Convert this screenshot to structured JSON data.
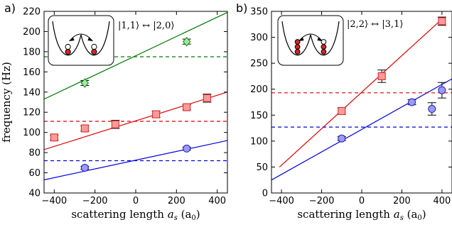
{
  "chart_data": [
    {
      "type": "scatter",
      "panel_label": "a)",
      "ylabel": "frequency (Hz)",
      "xlabel": "scattering length a_s (a_0)",
      "xlabel_main": "scattering length ",
      "xlabel_sym": "a",
      "xlabel_sub": "s",
      "xlabel_unit": "(a",
      "xlabel_unit_sub": "0",
      "xlabel_close": ")",
      "xlim": [
        -450,
        450
      ],
      "ylim": [
        40,
        220
      ],
      "xticks": [
        "−400",
        "−200",
        "0",
        "200",
        "400"
      ],
      "xtick_values": [
        -400,
        -200,
        0,
        200,
        400
      ],
      "yticks": [
        "40",
        "60",
        "80",
        "100",
        "120",
        "140",
        "160",
        "180",
        "200",
        "220"
      ],
      "ytick_values": [
        40,
        60,
        80,
        100,
        120,
        140,
        160,
        180,
        200,
        220
      ],
      "inset_label": "|1,1⟩ ↔ |2,0⟩",
      "series": [
        {
          "color": "#ff9a9a",
          "edge": "#cc2222",
          "marker": "square",
          "x": [
            -400,
            -250,
            -100,
            100,
            250,
            350
          ],
          "y": [
            95,
            104,
            108,
            118,
            125,
            134
          ],
          "err": [
            2.5,
            2.5,
            4,
            3,
            2.5,
            4
          ]
        },
        {
          "color": "#9a9aff",
          "edge": "#2222aa",
          "marker": "circle",
          "x": [
            -250,
            250
          ],
          "y": [
            65,
            84
          ],
          "err": [
            1.5,
            1.5
          ]
        },
        {
          "color": "#99ee99",
          "edge": "#227722",
          "marker": "diamond",
          "x": [
            -250,
            250
          ],
          "y": [
            149,
            190
          ],
          "err": [
            2.5,
            2.5
          ]
        }
      ],
      "lines": [
        {
          "color": "#dd0000",
          "x": [
            -450,
            450
          ],
          "y": [
            83,
            140
          ],
          "style": "solid"
        },
        {
          "color": "#0000dd",
          "x": [
            -450,
            450
          ],
          "y": [
            53,
            92
          ],
          "style": "solid"
        },
        {
          "color": "#007700",
          "x": [
            -450,
            450
          ],
          "y": [
            133,
            219
          ],
          "style": "solid"
        },
        {
          "color": "#dd0000",
          "x": [
            -450,
            450
          ],
          "y": [
            111,
            111
          ],
          "style": "dashed"
        },
        {
          "color": "#0000dd",
          "x": [
            -450,
            450
          ],
          "y": [
            72,
            72
          ],
          "style": "dashed"
        },
        {
          "color": "#007700",
          "x": [
            -450,
            450
          ],
          "y": [
            175,
            175
          ],
          "style": "dashed"
        }
      ]
    },
    {
      "type": "scatter",
      "panel_label": "b)",
      "xlabel": "scattering length a_s (a_0)",
      "xlabel_main": "scattering length ",
      "xlabel_sym": "a",
      "xlabel_sub": "s",
      "xlabel_unit": "(a",
      "xlabel_unit_sub": "0",
      "xlabel_close": ")",
      "xlim": [
        -450,
        450
      ],
      "ylim": [
        0,
        350
      ],
      "xticks": [
        "−400",
        "−200",
        "0",
        "200",
        "400"
      ],
      "xtick_values": [
        -400,
        -200,
        0,
        200,
        400
      ],
      "yticks": [
        "0",
        "50",
        "100",
        "150",
        "200",
        "250",
        "300",
        "350"
      ],
      "ytick_values": [
        0,
        50,
        100,
        150,
        200,
        250,
        300,
        350
      ],
      "inset_label": "|2,2⟩ ↔ |3,1⟩",
      "series": [
        {
          "color": "#ff9a9a",
          "edge": "#cc2222",
          "marker": "square",
          "x": [
            -100,
            100,
            400
          ],
          "y": [
            158,
            225,
            331
          ],
          "err": [
            6,
            12,
            8
          ]
        },
        {
          "color": "#9a9aff",
          "edge": "#2222aa",
          "marker": "circle",
          "x": [
            -100,
            250,
            350,
            400
          ],
          "y": [
            105,
            175,
            162,
            198
          ],
          "err": [
            4,
            5,
            12,
            15
          ]
        }
      ],
      "lines": [
        {
          "color": "#dd0000",
          "x": [
            -410,
            400
          ],
          "y": [
            50,
            335
          ],
          "style": "solid"
        },
        {
          "color": "#0000dd",
          "x": [
            -450,
            450
          ],
          "y": [
            25,
            220
          ],
          "style": "solid"
        },
        {
          "color": "#dd0000",
          "x": [
            -450,
            450
          ],
          "y": [
            193,
            193
          ],
          "style": "dashed"
        },
        {
          "color": "#0000dd",
          "x": [
            -450,
            450
          ],
          "y": [
            127,
            127
          ],
          "style": "dashed"
        }
      ]
    }
  ]
}
